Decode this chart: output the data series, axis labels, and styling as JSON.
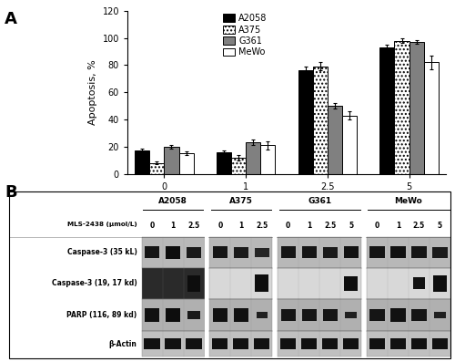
{
  "series": [
    {
      "name": "A2058",
      "color": "#000000",
      "hatch": "",
      "values": [
        17,
        16,
        76,
        93
      ],
      "errors": [
        1.5,
        1.5,
        3,
        2
      ]
    },
    {
      "name": "A375",
      "color": "#ffffff",
      "hatch": "....",
      "values": [
        8,
        12,
        79,
        98
      ],
      "errors": [
        1,
        2,
        3,
        1.5
      ]
    },
    {
      "name": "G361",
      "color": "#808080",
      "hatch": "",
      "values": [
        20,
        23,
        50,
        97
      ],
      "errors": [
        1.5,
        2,
        2,
        1.5
      ]
    },
    {
      "name": "MeWo",
      "color": "#ffffff",
      "hatch": "",
      "values": [
        15,
        21,
        43,
        82
      ],
      "errors": [
        1.5,
        3,
        3,
        5
      ]
    }
  ],
  "bar_labels": [
    "0",
    "1",
    "2.5",
    "5"
  ],
  "xlabel": "MLS-2438 (μmol/L)",
  "ylabel": "Apoptosis, %",
  "ylim": [
    0,
    120
  ],
  "yticks": [
    0,
    20,
    40,
    60,
    80,
    100,
    120
  ],
  "bar_width": 0.18,
  "legend_fontsize": 7,
  "axis_fontsize": 8,
  "tick_fontsize": 7,
  "wb_cell_groups": [
    "A2058",
    "A375",
    "G361",
    "MeWo"
  ],
  "wb_conc_A2058": [
    "0",
    "1",
    "2.5"
  ],
  "wb_conc_A375": [
    "0",
    "1",
    "2.5"
  ],
  "wb_conc_G361": [
    "0",
    "1",
    "2.5",
    "5"
  ],
  "wb_conc_MeWo": [
    "0",
    "1",
    "2.5",
    "5"
  ],
  "wb_row_labels": [
    "Caspase-3 (35 kL)",
    "Caspase-3 (19, 17 kd)",
    "PARP (116, 89 kd)",
    "β-Actin"
  ],
  "background_color": "#ffffff"
}
